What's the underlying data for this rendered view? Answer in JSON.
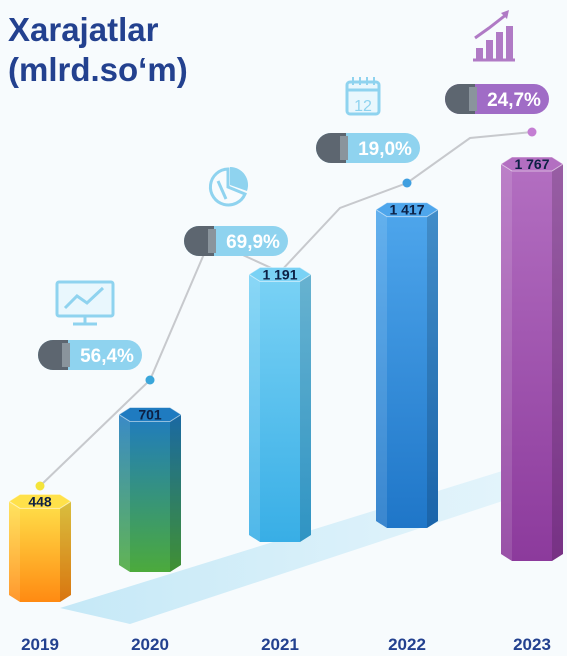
{
  "title": {
    "line1": "Xarajatlar",
    "line2": "(mlrd.so‘m)"
  },
  "colors": {
    "title": "#23418f",
    "trend_line": "#c7c9cd",
    "bars": [
      {
        "top": "#ffe14a",
        "bottom": "#ff8a12"
      },
      {
        "top": "#1f7bc0",
        "bottom": "#4caa3c"
      },
      {
        "top": "#7ad2f5",
        "bottom": "#38aee6"
      },
      {
        "top": "#4ea6ec",
        "bottom": "#1f76c8"
      },
      {
        "top": "#b36fc1",
        "bottom": "#8c3a9c"
      }
    ],
    "badges": [
      "#8fd3ef",
      "#8fd3ef",
      "#8fd3ef",
      "#a06cc6"
    ]
  },
  "chart_data": {
    "type": "bar",
    "categories": [
      "2019",
      "2020",
      "2021",
      "2022",
      "2023"
    ],
    "values": [
      448,
      701,
      1191,
      1417,
      1767
    ],
    "value_labels": [
      "448",
      "701",
      "1 191",
      "1 417",
      "1 767"
    ],
    "growth_labels": [
      "56,4%",
      "69,9%",
      "19,0%",
      "24,7%"
    ],
    "growth_icons": [
      "monitor-chart-icon",
      "pie-chart-icon",
      "calendar-icon",
      "bar-chart-growth-icon"
    ],
    "calendar_day": "12",
    "title": "Xarajatlar (mlrd.so‘m)",
    "xlabel": "",
    "ylabel": "",
    "ylim": [
      0,
      1767
    ],
    "grid": false,
    "legend": "none"
  }
}
